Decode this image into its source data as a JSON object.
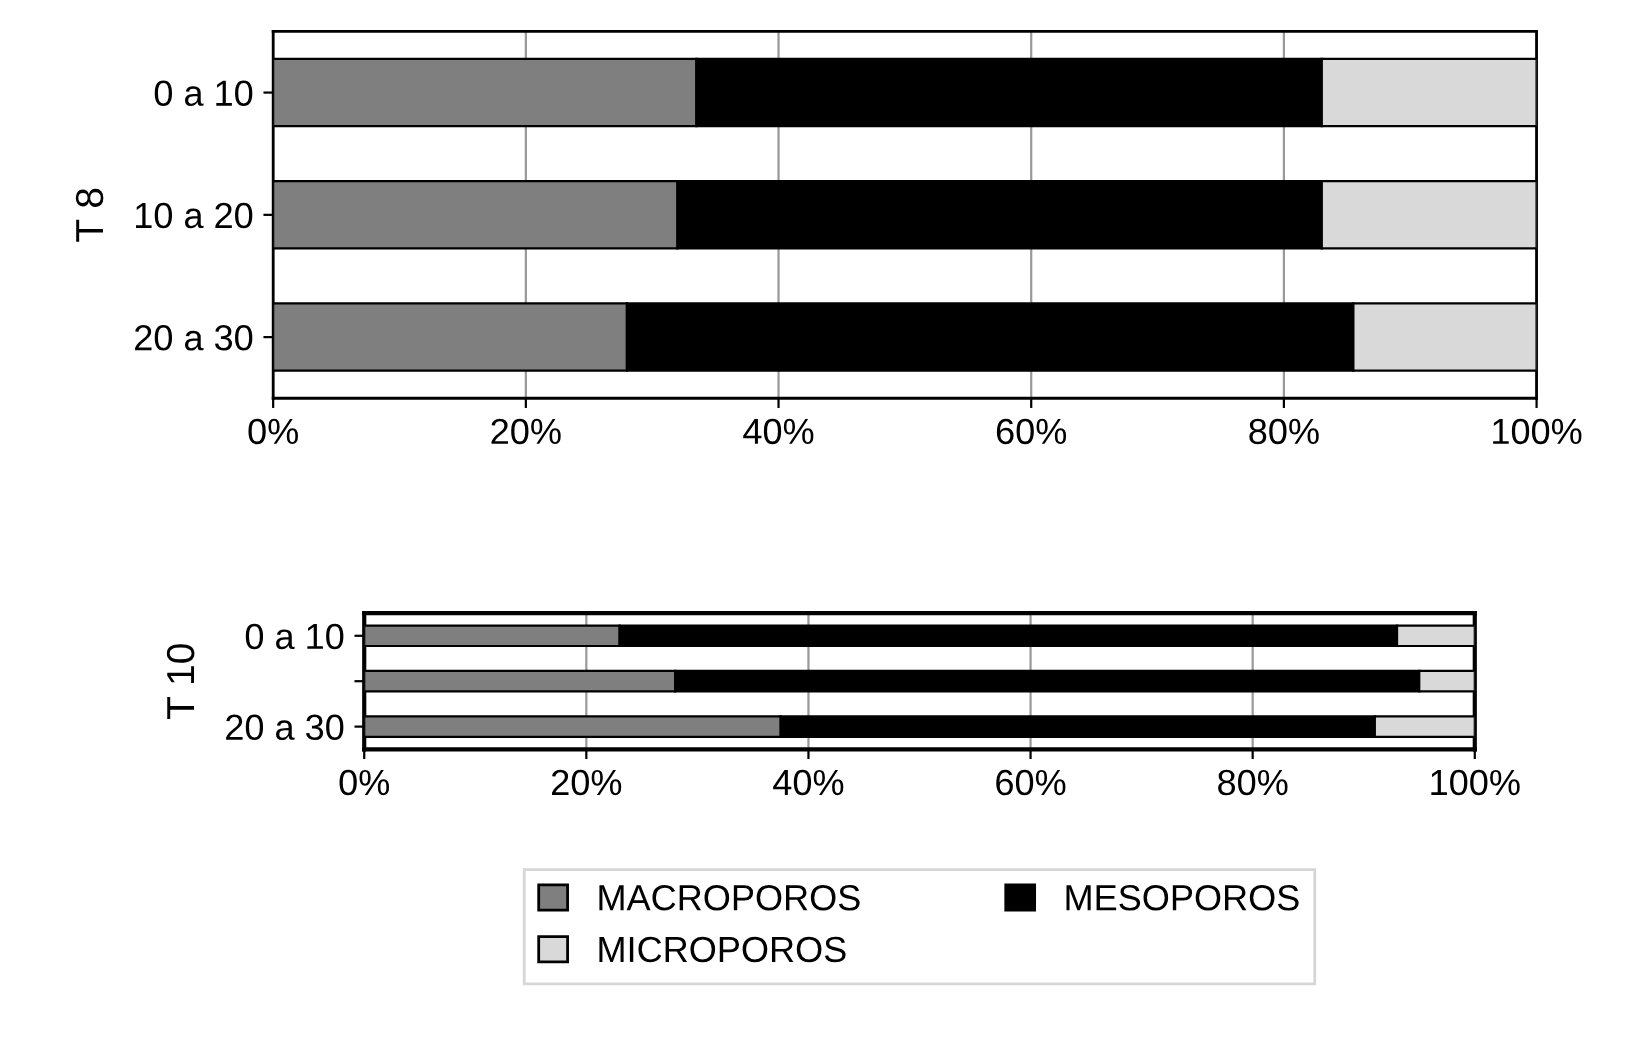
{
  "chart_data": [
    {
      "type": "bar",
      "orientation": "horizontal",
      "stacked": true,
      "ylabel": "T 8",
      "categories": [
        "0 a 10",
        "10 a 20",
        "20 a 30"
      ],
      "series": [
        {
          "color": "#7f7f7f",
          "values": [
            33.5,
            32,
            28
          ]
        },
        {
          "color": "#000000",
          "values": [
            49.5,
            51,
            57.5
          ]
        },
        {
          "color": "#d9d9d9",
          "values": [
            17,
            17,
            14.5
          ]
        }
      ],
      "xlim": [
        0,
        100
      ],
      "xticks": [
        {
          "value": 0,
          "label": "0%"
        },
        {
          "value": 20,
          "label": "20%"
        },
        {
          "value": 40,
          "label": "40%"
        },
        {
          "value": 60,
          "label": "60%"
        },
        {
          "value": 80,
          "label": "80%"
        },
        {
          "value": 100,
          "label": "100%"
        }
      ],
      "grid": "x"
    },
    {
      "type": "bar",
      "orientation": "horizontal",
      "stacked": true,
      "ylabel": "T 10",
      "categories": [
        "0 a 10",
        null,
        "20 a 30"
      ],
      "series": [
        {
          "name": "MACROPOROS",
          "color": "#7f7f7f",
          "values": [
            23,
            28,
            37.5
          ]
        },
        {
          "name": "MESOPOROS",
          "color": "#000000",
          "values": [
            70,
            67,
            53.5
          ]
        },
        {
          "name": "MICROPOROS",
          "color": "#d9d9d9",
          "values": [
            7,
            5,
            9
          ]
        }
      ],
      "xlim": [
        0,
        100
      ],
      "xticks": [
        {
          "value": 0,
          "label": "0%"
        },
        {
          "value": 20,
          "label": "20%"
        },
        {
          "value": 40,
          "label": "40%"
        },
        {
          "value": 60,
          "label": "60%"
        },
        {
          "value": 80,
          "label": "80%"
        },
        {
          "value": 100,
          "label": "100%"
        }
      ],
      "grid": "x",
      "legend": "bottom"
    }
  ]
}
